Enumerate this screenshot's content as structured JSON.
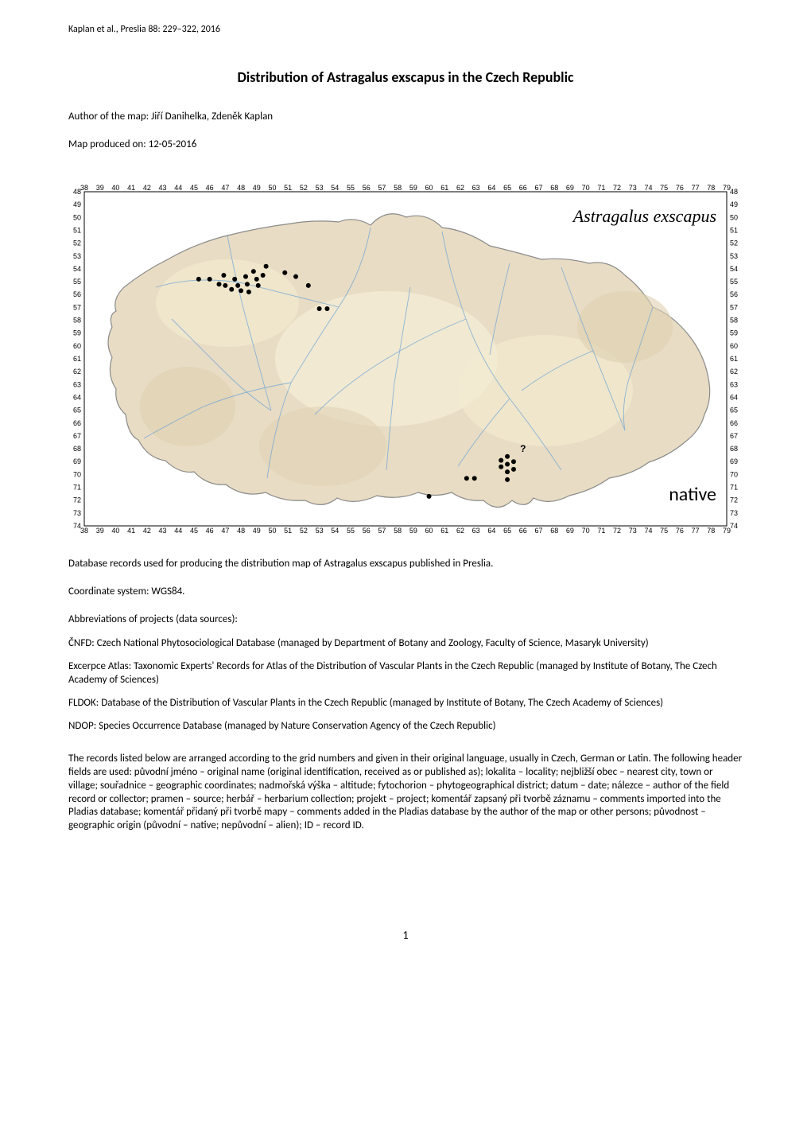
{
  "header": {
    "citation": "Kaplan et al., Preslia 88: 229–322, 2016"
  },
  "title": "Distribution of Astragalus exscapus in the Czech Republic",
  "author_line": "Author of the map: Jiří Danihelka, Zdeněk Kaplan",
  "date_line": "Map produced on: 12-05-2016",
  "map": {
    "species_label": "Astragalus exscapus",
    "native_label": "native",
    "question_mark": "?",
    "border_color": "#000000",
    "background_color": "#ffffff",
    "land_color": "#e8dcc4",
    "land_highlight": "#f5eed8",
    "land_lowland": "#d4c8a8",
    "river_color": "#6ba3d6",
    "country_border_color": "#8a8a8a",
    "point_fill": "#000000",
    "col_ticks": [
      38,
      39,
      40,
      41,
      42,
      43,
      44,
      45,
      46,
      47,
      48,
      49,
      50,
      51,
      52,
      53,
      54,
      55,
      56,
      57,
      58,
      59,
      60,
      61,
      62,
      63,
      64,
      65,
      66,
      67,
      68,
      69,
      70,
      71,
      72,
      73,
      74,
      75,
      76,
      77,
      78,
      79
    ],
    "row_ticks": [
      48,
      49,
      50,
      51,
      52,
      53,
      54,
      55,
      56,
      57,
      58,
      59,
      60,
      61,
      62,
      63,
      64,
      65,
      66,
      67,
      68,
      69,
      70,
      71,
      72,
      73,
      74
    ],
    "points": [
      {
        "col": 45.3,
        "row": 54.8
      },
      {
        "col": 46.0,
        "row": 54.8
      },
      {
        "col": 46.6,
        "row": 55.2
      },
      {
        "col": 46.9,
        "row": 54.5
      },
      {
        "col": 47.0,
        "row": 55.3
      },
      {
        "col": 47.4,
        "row": 55.6
      },
      {
        "col": 47.6,
        "row": 54.8
      },
      {
        "col": 47.8,
        "row": 55.3
      },
      {
        "col": 48.0,
        "row": 55.7
      },
      {
        "col": 48.3,
        "row": 54.6
      },
      {
        "col": 48.4,
        "row": 55.2
      },
      {
        "col": 48.5,
        "row": 55.8
      },
      {
        "col": 48.8,
        "row": 54.2
      },
      {
        "col": 49.0,
        "row": 54.8
      },
      {
        "col": 49.1,
        "row": 55.3
      },
      {
        "col": 49.4,
        "row": 54.5
      },
      {
        "col": 49.6,
        "row": 53.8
      },
      {
        "col": 50.8,
        "row": 54.3
      },
      {
        "col": 51.5,
        "row": 54.6
      },
      {
        "col": 52.3,
        "row": 55.3
      },
      {
        "col": 53.0,
        "row": 57.1
      },
      {
        "col": 53.5,
        "row": 57.1
      },
      {
        "col": 62.4,
        "row": 70.3
      },
      {
        "col": 62.9,
        "row": 70.3
      },
      {
        "col": 64.6,
        "row": 68.9
      },
      {
        "col": 64.6,
        "row": 69.4
      },
      {
        "col": 65.0,
        "row": 68.6
      },
      {
        "col": 65.0,
        "row": 69.2
      },
      {
        "col": 65.0,
        "row": 69.8
      },
      {
        "col": 65.0,
        "row": 70.4
      },
      {
        "col": 65.4,
        "row": 69.0
      },
      {
        "col": 65.4,
        "row": 69.6
      },
      {
        "col": 60.0,
        "row": 71.7
      }
    ],
    "question_point": {
      "col": 66.0,
      "row": 68.0
    }
  },
  "below_map": {
    "database_line": "Database records used for producing the distribution map of Astragalus exscapus published in Preslia.",
    "coord_line": "Coordinate system: WGS84.",
    "abbrev_heading": "Abbreviations of projects (data sources):",
    "abbreviations": [
      "ČNFD:  Czech National Phytosociological Database (managed by Department of Botany and Zoology, Faculty of Science, Masaryk University)",
      "Excerpce Atlas:  Taxonomic Experts' Records for Atlas of the Distribution of Vascular Plants in the Czech Republic (managed by Institute of Botany, The Czech Academy of Sciences)",
      "FLDOK:  Database of the Distribution of Vascular Plants in the Czech Republic (managed by Institute of Botany, The Czech Academy of Sciences)",
      "NDOP:  Species Occurrence Database (managed by Nature Conservation Agency of the Czech Republic)"
    ],
    "records_para": "The records listed below are arranged according to the grid numbers and given in their original language, usually in Czech, German or Latin. The following header fields are used: původní jméno – original name (original identification, received as or published as); lokalita – locality; nejbližší obec – nearest city, town or village; souřadnice – geographic coordinates; nadmořská výška – altitude; fytochorion – phytogeographical district; datum – date; nálezce – author of the field record or collector; pramen – source; herbář – herbarium collection; projekt – project; komentář zapsaný při tvorbě záznamu  – comments imported into the Pladias database; komentář přidaný při tvorbě mapy  – comments added in the Pladias database by the author of the map or other persons; původnost – geographic origin (původní – native; nepůvodní – alien); ID – record ID."
  },
  "page_number": "1"
}
